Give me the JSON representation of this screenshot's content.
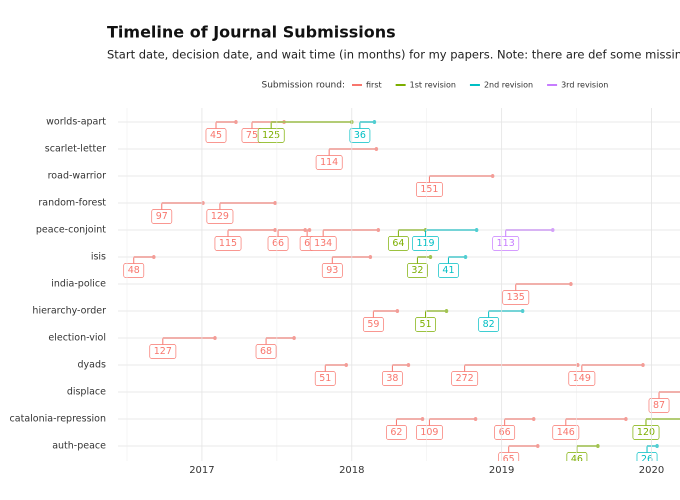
{
  "chart_data": {
    "type": "timeline",
    "title": "Timeline of Journal Submissions",
    "subtitle": "Start date, decision date, and wait time (in months) for my papers. Note: there are def some missing submit attempts here",
    "legend_title": "Submission round:",
    "categories": [
      "worlds-apart",
      "scarlet-letter",
      "road-warrior",
      "random-forest",
      "peace-conjoint",
      "isis",
      "india-police",
      "hierarchy-order",
      "election-viol",
      "dyads",
      "displace",
      "catalonia-repression",
      "auth-peace"
    ],
    "xlim": [
      2016.44,
      2020.19
    ],
    "xticks": [
      2017,
      2018,
      2019,
      2020
    ],
    "grid": true,
    "series": [
      {
        "name": "first",
        "color": "#F8766D",
        "items": [
          {
            "category": "worlds-apart",
            "start": 2017.094,
            "end": 2017.227,
            "label": 45
          },
          {
            "category": "worlds-apart",
            "start": 2017.334,
            "end": 2017.548,
            "label": 75
          },
          {
            "category": "scarlet-letter",
            "start": 2017.849,
            "end": 2018.164,
            "label": 114
          },
          {
            "category": "road-warrior",
            "start": 2018.518,
            "end": 2018.94,
            "label": 151
          },
          {
            "category": "random-forest",
            "start": 2016.732,
            "end": 2017.007,
            "label": 97
          },
          {
            "category": "random-forest",
            "start": 2017.12,
            "end": 2017.488,
            "label": 129
          },
          {
            "category": "peace-conjoint",
            "start": 2017.174,
            "end": 2017.488,
            "label": 115
          },
          {
            "category": "peace-conjoint",
            "start": 2017.508,
            "end": 2017.689,
            "label": 66
          },
          {
            "category": "peace-conjoint",
            "start": 2017.702,
            "end": 2017.718,
            "label": 6
          },
          {
            "category": "peace-conjoint",
            "start": 2017.809,
            "end": 2018.177,
            "label": 134
          },
          {
            "category": "isis",
            "start": 2016.545,
            "end": 2016.679,
            "label": 48
          },
          {
            "category": "isis",
            "start": 2017.87,
            "end": 2018.124,
            "label": 93
          },
          {
            "category": "india-police",
            "start": 2019.094,
            "end": 2019.462,
            "label": 135
          },
          {
            "category": "hierarchy-order",
            "start": 2018.144,
            "end": 2018.304,
            "label": 59
          },
          {
            "category": "election-viol",
            "start": 2016.739,
            "end": 2017.087,
            "label": 127
          },
          {
            "category": "election-viol",
            "start": 2017.428,
            "end": 2017.615,
            "label": 68
          },
          {
            "category": "dyads",
            "start": 2017.823,
            "end": 2017.963,
            "label": 51
          },
          {
            "category": "dyads",
            "start": 2018.271,
            "end": 2018.378,
            "label": 38
          },
          {
            "category": "dyads",
            "start": 2018.753,
            "end": 2019.508,
            "label": 272
          },
          {
            "category": "dyads",
            "start": 2019.535,
            "end": 2019.943,
            "label": 149
          },
          {
            "category": "displace",
            "start": 2020.05,
            "end": 2020.288,
            "label": 87
          },
          {
            "category": "catalonia-repression",
            "start": 2018.298,
            "end": 2018.472,
            "label": 62
          },
          {
            "category": "catalonia-repression",
            "start": 2018.518,
            "end": 2018.826,
            "label": 109
          },
          {
            "category": "catalonia-repression",
            "start": 2019.02,
            "end": 2019.214,
            "label": 66
          },
          {
            "category": "catalonia-repression",
            "start": 2019.428,
            "end": 2019.829,
            "label": 146
          },
          {
            "category": "auth-peace",
            "start": 2019.047,
            "end": 2019.241,
            "label": 65
          }
        ]
      },
      {
        "name": "1st revision",
        "color": "#7CAE00",
        "items": [
          {
            "category": "worlds-apart",
            "start": 2017.462,
            "end": 2018.0,
            "label": 125
          },
          {
            "category": "peace-conjoint",
            "start": 2018.311,
            "end": 2018.492,
            "label": 64
          },
          {
            "category": "isis",
            "start": 2018.438,
            "end": 2018.525,
            "label": 32
          },
          {
            "category": "hierarchy-order",
            "start": 2018.492,
            "end": 2018.632,
            "label": 51
          },
          {
            "category": "catalonia-repression",
            "start": 2019.963,
            "end": 2020.29,
            "label": 120
          },
          {
            "category": "auth-peace",
            "start": 2019.502,
            "end": 2019.642,
            "label": 46
          }
        ]
      },
      {
        "name": "2nd revision",
        "color": "#00BFC4",
        "items": [
          {
            "category": "worlds-apart",
            "start": 2018.054,
            "end": 2018.151,
            "label": 36
          },
          {
            "category": "peace-conjoint",
            "start": 2018.492,
            "end": 2018.833,
            "label": 119
          },
          {
            "category": "isis",
            "start": 2018.645,
            "end": 2018.759,
            "label": 41
          },
          {
            "category": "hierarchy-order",
            "start": 2018.913,
            "end": 2019.14,
            "label": 82
          },
          {
            "category": "auth-peace",
            "start": 2019.97,
            "end": 2020.037,
            "label": 26
          }
        ]
      },
      {
        "name": "3rd revision",
        "color": "#C77CFF",
        "items": [
          {
            "category": "peace-conjoint",
            "start": 2019.027,
            "end": 2019.341,
            "label": 113
          }
        ]
      }
    ]
  }
}
